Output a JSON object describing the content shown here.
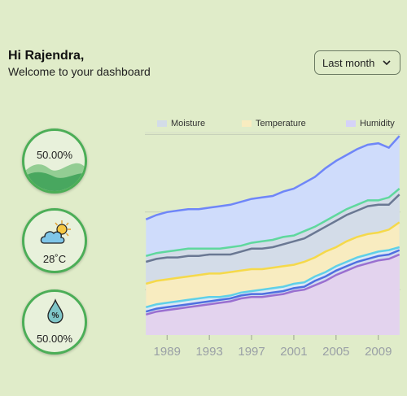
{
  "greeting": {
    "hi": "Hi Rajendra,",
    "welcome": "Welcome to your dashboard"
  },
  "period_select": {
    "value": "Last month"
  },
  "stats": {
    "moisture": {
      "value": "50.00%",
      "icon": "wave-fill-icon",
      "level": 0.4
    },
    "temperature": {
      "value": "28˚C",
      "icon": "partly-cloudy-icon"
    },
    "humidity": {
      "value": "50.00%",
      "icon": "water-drop-percent-icon"
    }
  },
  "colors": {
    "accent": "#4cae57",
    "background": "#e0ecc9"
  },
  "chart_data": {
    "type": "area",
    "x_ticks": [
      "1989",
      "1993",
      "1997",
      "2001",
      "2005",
      "2009"
    ],
    "legend": [
      {
        "name": "Moisture",
        "color": "#d3dce8"
      },
      {
        "name": "Temperature",
        "color": "#f8ecc0"
      },
      {
        "name": "Humidity",
        "color": "#d5d2f8"
      }
    ],
    "x": [
      1987,
      1988,
      1989,
      1990,
      1991,
      1992,
      1993,
      1994,
      1995,
      1996,
      1997,
      1998,
      1999,
      2000,
      2001,
      2002,
      2003,
      2004,
      2005,
      2006,
      2007,
      2008,
      2009,
      2010,
      2011
    ],
    "xlim": [
      1986.9,
      2011.1
    ],
    "ylim": [
      0,
      100
    ],
    "grid": "horizontal",
    "layers": [
      {
        "fill": "#e3d3ee",
        "line": "#9a6fd0",
        "values": [
          14,
          16,
          17,
          18,
          19,
          20,
          21,
          22,
          23,
          25,
          26,
          26,
          27,
          28,
          30,
          31,
          34,
          37,
          41,
          44,
          47,
          49,
          51,
          52,
          55
        ]
      },
      {
        "fill": "#d3dcf0",
        "line": "#4f6fe0",
        "values": [
          16,
          18,
          19,
          20,
          21,
          22,
          23,
          24,
          25,
          27,
          28,
          28,
          29,
          30,
          32,
          33,
          37,
          40,
          44,
          47,
          50,
          52,
          54,
          55,
          58
        ]
      },
      {
        "fill": "#dbe8f4",
        "line": "#5fd0e8",
        "values": [
          19,
          21,
          22,
          23,
          24,
          25,
          26,
          26,
          27,
          29,
          30,
          31,
          32,
          33,
          35,
          36,
          40,
          43,
          47,
          50,
          53,
          55,
          57,
          58,
          60
        ]
      },
      {
        "fill": "#f8ecc0",
        "line": "#f5d94a",
        "values": [
          35,
          37,
          38,
          39,
          40,
          41,
          42,
          42,
          43,
          44,
          45,
          45,
          46,
          47,
          48,
          50,
          53,
          57,
          60,
          64,
          67,
          69,
          70,
          72,
          77
        ]
      },
      {
        "fill": "#d3dce8",
        "line": "#6a7893",
        "values": [
          50,
          52,
          53,
          53,
          54,
          54,
          55,
          55,
          55,
          57,
          59,
          59,
          60,
          62,
          64,
          66,
          70,
          74,
          78,
          82,
          85,
          88,
          89,
          89,
          96
        ]
      },
      {
        "fill": "#d3dce8",
        "line": "#5fd89e",
        "values": [
          54,
          56,
          57,
          58,
          59,
          59,
          59,
          59,
          60,
          61,
          63,
          64,
          65,
          67,
          68,
          71,
          74,
          78,
          82,
          86,
          89,
          92,
          92,
          94,
          100
        ]
      },
      {
        "fill": "#cfdcfb",
        "line": "#6f86f8",
        "values": [
          79,
          82,
          84,
          85,
          86,
          86,
          87,
          88,
          89,
          91,
          93,
          94,
          95,
          98,
          100,
          104,
          108,
          114,
          119,
          123,
          127,
          130,
          131,
          128,
          136
        ]
      }
    ]
  }
}
